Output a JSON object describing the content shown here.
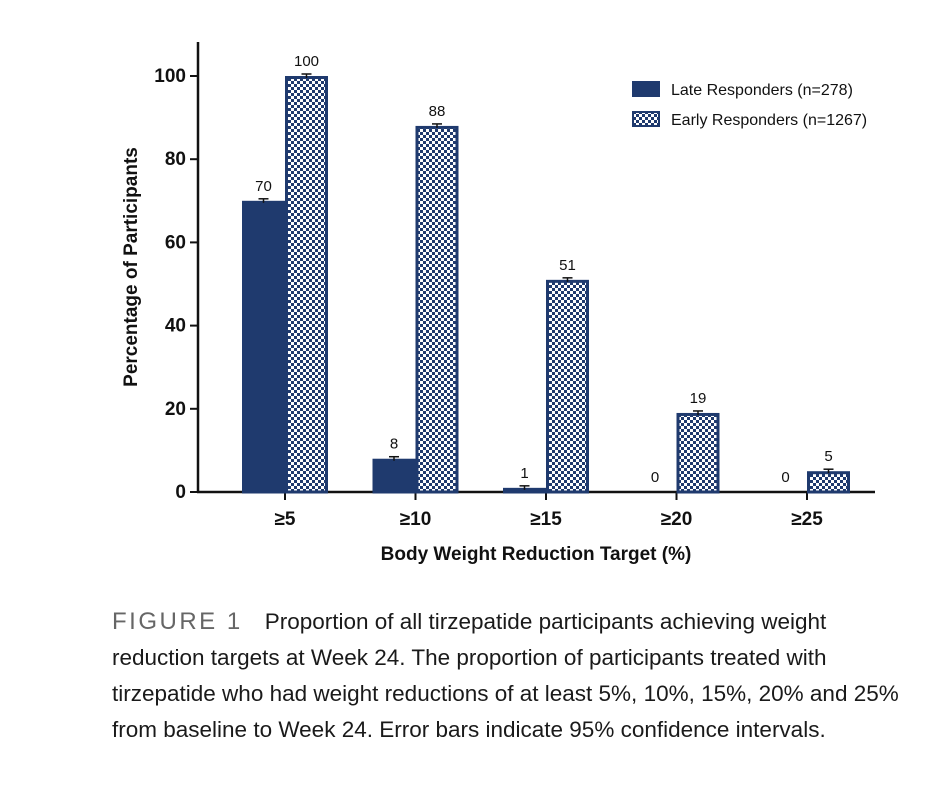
{
  "chart_data": {
    "type": "bar",
    "categories": [
      "≥5",
      "≥10",
      "≥15",
      "≥20",
      "≥25"
    ],
    "series": [
      {
        "name": "Late Responders (n=278)",
        "values": [
          70,
          8,
          1,
          0,
          0
        ],
        "labels": [
          "70",
          "8",
          "1",
          "0",
          "0"
        ],
        "color": "#1f3a6e",
        "pattern": "solid"
      },
      {
        "name": "Early Responders (n=1267)",
        "values": [
          100,
          88,
          51,
          19,
          5
        ],
        "labels": [
          "100",
          "88",
          "51",
          "19",
          "5"
        ],
        "color": "#1f3a6e",
        "pattern": "checkerboard"
      }
    ],
    "error_bars": "95% confidence intervals",
    "xlabel": "Body Weight Reduction Target (%)",
    "ylabel": "Percentage of Participants",
    "ylim": [
      0,
      100
    ],
    "yticks": [
      0,
      20,
      40,
      60,
      80,
      100
    ],
    "grid": false,
    "legend_position": "top-right"
  },
  "caption": {
    "label": "FIGURE 1",
    "text": "Proportion of all tirzepatide participants achieving weight reduction targets at Week 24. The proportion of participants treated with tirzepatide who had weight reductions of at least 5%, 10%, 15%, 20% and 25% from baseline to Week 24. Error bars indicate 95% confidence intervals."
  }
}
